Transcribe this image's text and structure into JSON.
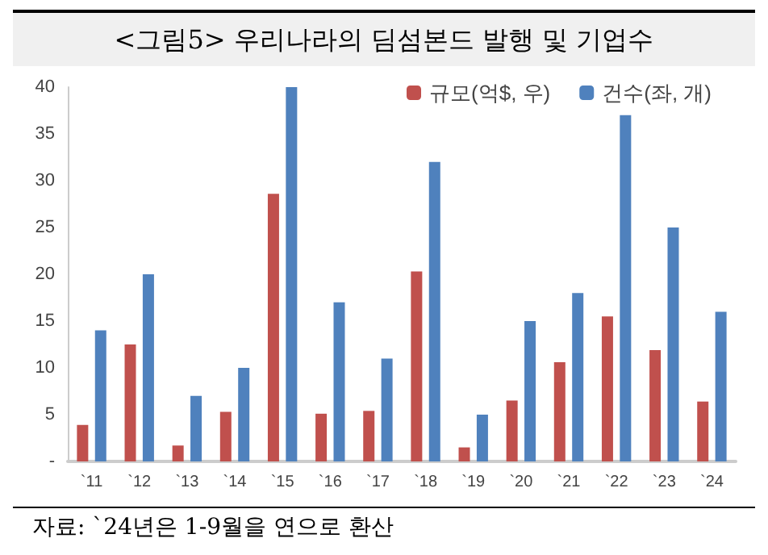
{
  "chart_data": {
    "type": "bar",
    "title": "<그림5> 우리나라의 딤섬본드 발행 및 기업수",
    "categories": [
      "`11",
      "`12",
      "`13",
      "`14",
      "`15",
      "`16",
      "`17",
      "`18",
      "`19",
      "`20",
      "`21",
      "`22",
      "`23",
      "`24"
    ],
    "series": [
      {
        "name": "규모(억$, 우)",
        "color": "#c0504d",
        "values": [
          3.9,
          12.5,
          1.7,
          5.3,
          28.6,
          5.1,
          5.4,
          20.3,
          1.5,
          6.5,
          10.6,
          15.5,
          11.9,
          6.4
        ]
      },
      {
        "name": "건수(좌, 개)",
        "color": "#4f81bd",
        "values": [
          14,
          20,
          7,
          10,
          40,
          17,
          11,
          32,
          5,
          15,
          18,
          37,
          25,
          16
        ]
      }
    ],
    "ylim": [
      0,
      40
    ],
    "yticks": [
      {
        "value": 0,
        "label": "-"
      },
      5,
      10,
      15,
      20,
      25,
      30,
      35,
      40
    ],
    "grid": false,
    "legend": "top right",
    "annotations": [
      "자료: `24년은 1-9월을 연으로 환산"
    ]
  }
}
